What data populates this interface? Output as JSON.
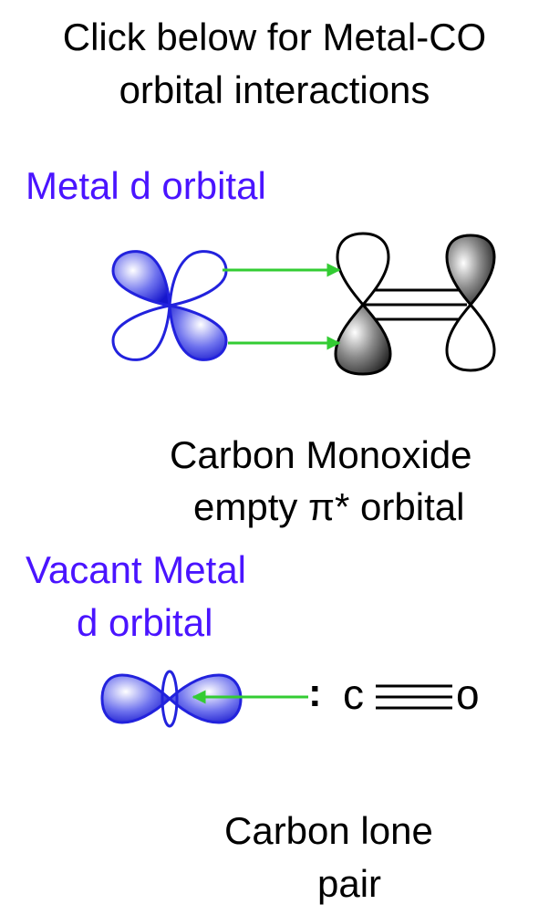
{
  "title": {
    "line1": "Click below for Metal-CO",
    "line2": "orbital interactions"
  },
  "section1": {
    "heading": "Metal d orbital",
    "caption_line1": "Carbon  Monoxide",
    "caption_line2": "empty π* orbital"
  },
  "section2": {
    "heading_line1": "Vacant Metal",
    "heading_line2": "d orbital",
    "lone_pair": ":",
    "atom_c": "c",
    "atom_o": "o",
    "caption_line1": "Carbon  lone",
    "caption_line2": "pair"
  },
  "colors": {
    "metal": "#2222dd",
    "heading": "#4a14ff",
    "arrow": "#33cc33",
    "lobe_dark": "#222222"
  }
}
